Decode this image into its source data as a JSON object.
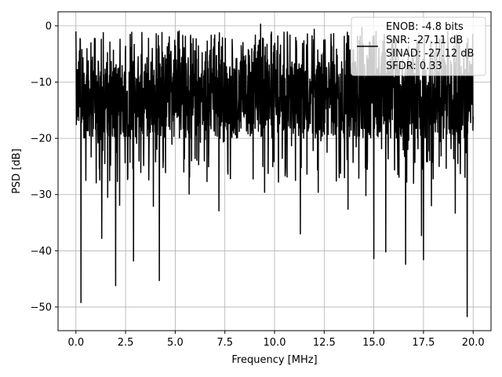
{
  "chart_data": {
    "type": "line",
    "title": "",
    "xlabel": "Frequency [MHz]",
    "ylabel": "PSD [dB]",
    "xlim": [
      -0.9,
      20.9
    ],
    "ylim": [
      -54.2,
      2.5
    ],
    "x_ticks": [
      0.0,
      2.5,
      5.0,
      7.5,
      10.0,
      12.5,
      15.0,
      17.5,
      20.0
    ],
    "x_tick_labels": [
      "0.0",
      "2.5",
      "5.0",
      "7.5",
      "10.0",
      "12.5",
      "15.0",
      "17.5",
      "20.0"
    ],
    "y_ticks": [
      0,
      -10,
      -20,
      -30,
      -40,
      -50
    ],
    "y_tick_labels": [
      "0",
      "−10",
      "−20",
      "−30",
      "−40",
      "−50"
    ],
    "grid": true,
    "legend_position": "top-right",
    "series": [
      {
        "name": "ENOB: -4.8 bits\nSNR: -27.11 dB\nSINAD: -27.12 dB\nSFDR: 0.33",
        "legend_lines": [
          "ENOB: -4.8 bits",
          "SNR: -27.11 dB",
          "SINAD: -27.12 dB",
          "SFDR: 0.33"
        ],
        "color": "#000000",
        "x_start": 0.0,
        "x_end": 20.0,
        "noise_band_db": [
          -20,
          -6
        ],
        "noise_mean_db": -13,
        "peaks": [
          {
            "x": 0.0,
            "y": -1.0
          },
          {
            "x": 9.3,
            "y": 0.3
          },
          {
            "x": 14.4,
            "y": -0.3
          },
          {
            "x": 5.2,
            "y": -0.9
          },
          {
            "x": 12.0,
            "y": -0.6
          }
        ],
        "dips": [
          {
            "x": 0.25,
            "y": -49.2
          },
          {
            "x": 1.3,
            "y": -37.8
          },
          {
            "x": 2.0,
            "y": -46.2
          },
          {
            "x": 2.9,
            "y": -41.8
          },
          {
            "x": 4.2,
            "y": -45.3
          },
          {
            "x": 7.2,
            "y": -32.9
          },
          {
            "x": 11.3,
            "y": -37.0
          },
          {
            "x": 15.0,
            "y": -41.4
          },
          {
            "x": 15.6,
            "y": -40.2
          },
          {
            "x": 16.6,
            "y": -42.4
          },
          {
            "x": 17.4,
            "y": -37.3
          },
          {
            "x": 17.5,
            "y": -41.6
          },
          {
            "x": 19.7,
            "y": -51.7
          },
          {
            "x": 0.5,
            "y": -27.5
          },
          {
            "x": 1.6,
            "y": -30.5
          },
          {
            "x": 2.2,
            "y": -31.9
          },
          {
            "x": 3.9,
            "y": -32.1
          },
          {
            "x": 5.7,
            "y": -29.9
          },
          {
            "x": 6.6,
            "y": -27.7
          },
          {
            "x": 9.5,
            "y": -29.6
          },
          {
            "x": 12.2,
            "y": -29.6
          },
          {
            "x": 13.7,
            "y": -32.6
          },
          {
            "x": 14.6,
            "y": -30.2
          },
          {
            "x": 17.9,
            "y": -32.0
          },
          {
            "x": 19.1,
            "y": -33.3
          }
        ]
      }
    ]
  }
}
